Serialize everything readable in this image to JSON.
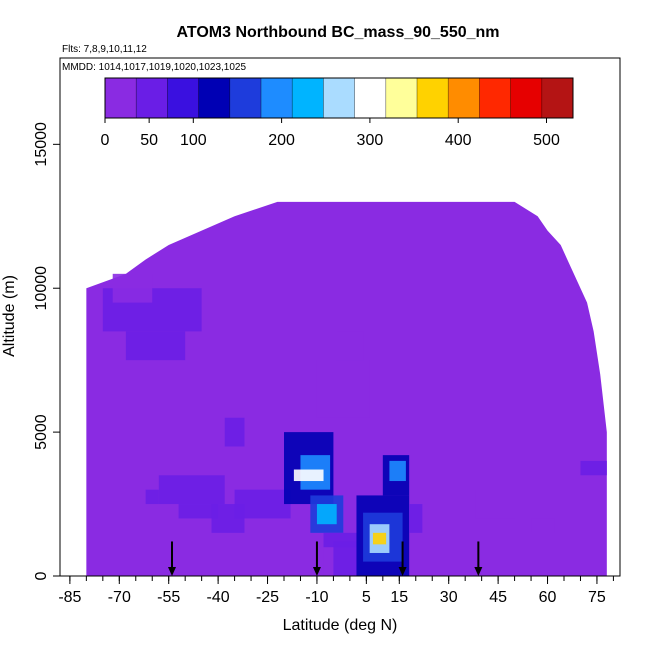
{
  "chart_data": {
    "type": "heatmap",
    "title": "ATOM3 Northbound BC_mass_90_550_nm",
    "subtitle_flights": "Flts: 7,8,9,10,11,12",
    "subtitle_dates": "MMDD: 1014,1017,1019,1020,1023,1025",
    "xlabel": "Latitude (deg N)",
    "ylabel": "Altitude (m)",
    "xlim": [
      -88,
      82
    ],
    "ylim": [
      0,
      18000
    ],
    "x_ticks": [
      "-85",
      "-70",
      "-55",
      "-40",
      "-25",
      "-10",
      "5",
      "15",
      "30",
      "45",
      "60",
      "75"
    ],
    "x_tick_values": [
      -85,
      -70,
      -55,
      -40,
      -25,
      -10,
      5,
      15,
      30,
      45,
      60,
      75
    ],
    "y_ticks": [
      "0",
      "5000",
      "10000",
      "15000"
    ],
    "y_tick_values": [
      0,
      5000,
      10000,
      15000
    ],
    "colorbar": {
      "range": [
        0,
        530
      ],
      "tick_labels": [
        "0",
        "50",
        "100",
        "200",
        "300",
        "400",
        "500"
      ],
      "tick_values": [
        0,
        50,
        100,
        200,
        300,
        400,
        500
      ],
      "colors": [
        "#8a2be2",
        "#6a1ee6",
        "#3a10e0",
        "#0000b4",
        "#1e3cdc",
        "#1e8cff",
        "#00b4ff",
        "#aadcff",
        "#ffffff",
        "#ffff9a",
        "#ffd200",
        "#ff8c00",
        "#ff2800",
        "#e60000",
        "#b41414"
      ]
    },
    "arrow_latitudes": [
      -54,
      -10,
      16,
      39
    ],
    "domain_top_altitude": [
      [
        -80,
        10000
      ],
      [
        -68,
        10500
      ],
      [
        -62,
        11000
      ],
      [
        -55,
        11500
      ],
      [
        -45,
        12000
      ],
      [
        -35,
        12500
      ],
      [
        -22,
        13000
      ],
      [
        50,
        13000
      ],
      [
        57,
        12500
      ],
      [
        60,
        12000
      ],
      [
        64,
        11500
      ],
      [
        66,
        11000
      ],
      [
        68,
        10500
      ],
      [
        70,
        10000
      ],
      [
        72,
        9500
      ],
      [
        74,
        8500
      ],
      [
        76,
        7000
      ],
      [
        78,
        5000
      ]
    ],
    "regions": [
      {
        "name": "background",
        "lat": [
          -80,
          78
        ],
        "alt": [
          0,
          13000
        ],
        "value": 15
      },
      {
        "lat": [
          -75,
          -45
        ],
        "alt": [
          8500,
          10000
        ],
        "value": 40
      },
      {
        "lat": [
          -68,
          -50
        ],
        "alt": [
          7500,
          8500
        ],
        "value": 45
      },
      {
        "lat": [
          -72,
          -60
        ],
        "alt": [
          9500,
          10500
        ],
        "value": 35
      },
      {
        "lat": [
          -58,
          -38
        ],
        "alt": [
          2500,
          3500
        ],
        "value": 60
      },
      {
        "lat": [
          -52,
          -40
        ],
        "alt": [
          2000,
          2500
        ],
        "value": 50
      },
      {
        "lat": [
          -62,
          -58
        ],
        "alt": [
          2500,
          3000
        ],
        "value": 40
      },
      {
        "lat": [
          -42,
          -32
        ],
        "alt": [
          1500,
          2500
        ],
        "value": 40
      },
      {
        "lat": [
          -35,
          -18
        ],
        "alt": [
          2000,
          3000
        ],
        "value": 45
      },
      {
        "lat": [
          -38,
          -32
        ],
        "alt": [
          4500,
          5500
        ],
        "value": 40
      },
      {
        "lat": [
          -8,
          8
        ],
        "alt": [
          0,
          1000
        ],
        "value": 35
      },
      {
        "lat": [
          -10,
          6
        ],
        "alt": [
          5500,
          7500
        ],
        "value": 35
      },
      {
        "lat": [
          -4,
          4
        ],
        "alt": [
          7500,
          8500
        ],
        "value": 30
      },
      {
        "lat": [
          -20,
          -5
        ],
        "alt": [
          2500,
          5000
        ],
        "value": 120
      },
      {
        "lat": [
          -15,
          -6
        ],
        "alt": [
          3000,
          4200
        ],
        "value": 180
      },
      {
        "lat": [
          -12,
          -2
        ],
        "alt": [
          1500,
          2800
        ],
        "value": 150
      },
      {
        "lat": [
          -10,
          -4
        ],
        "alt": [
          1800,
          2500
        ],
        "value": 230
      },
      {
        "lat": [
          -17,
          -8
        ],
        "alt": [
          3300,
          3700
        ],
        "value": 300
      },
      {
        "lat": [
          -8,
          2
        ],
        "alt": [
          1000,
          1500
        ],
        "value": 70
      },
      {
        "lat": [
          -5,
          2
        ],
        "alt": [
          0,
          1200
        ],
        "value": 60
      },
      {
        "lat": [
          2,
          18
        ],
        "alt": [
          0,
          2800
        ],
        "value": 110
      },
      {
        "lat": [
          4,
          16
        ],
        "alt": [
          500,
          2200
        ],
        "value": 160
      },
      {
        "lat": [
          6,
          12
        ],
        "alt": [
          800,
          1800
        ],
        "value": 260
      },
      {
        "lat": [
          7,
          11
        ],
        "alt": [
          1100,
          1500
        ],
        "value": 360
      },
      {
        "lat": [
          10,
          18
        ],
        "alt": [
          2800,
          4200
        ],
        "value": 130
      },
      {
        "lat": [
          12,
          17
        ],
        "alt": [
          3300,
          4000
        ],
        "value": 180
      },
      {
        "lat": [
          18,
          22
        ],
        "alt": [
          1500,
          2500
        ],
        "value": 60
      },
      {
        "lat": [
          38,
          50
        ],
        "alt": [
          2000,
          3000
        ],
        "value": 35
      },
      {
        "lat": [
          70,
          78
        ],
        "alt": [
          3500,
          4000
        ],
        "value": 70
      },
      {
        "lat": [
          55,
          62
        ],
        "alt": [
          1500,
          2000
        ],
        "value": 30
      }
    ]
  }
}
